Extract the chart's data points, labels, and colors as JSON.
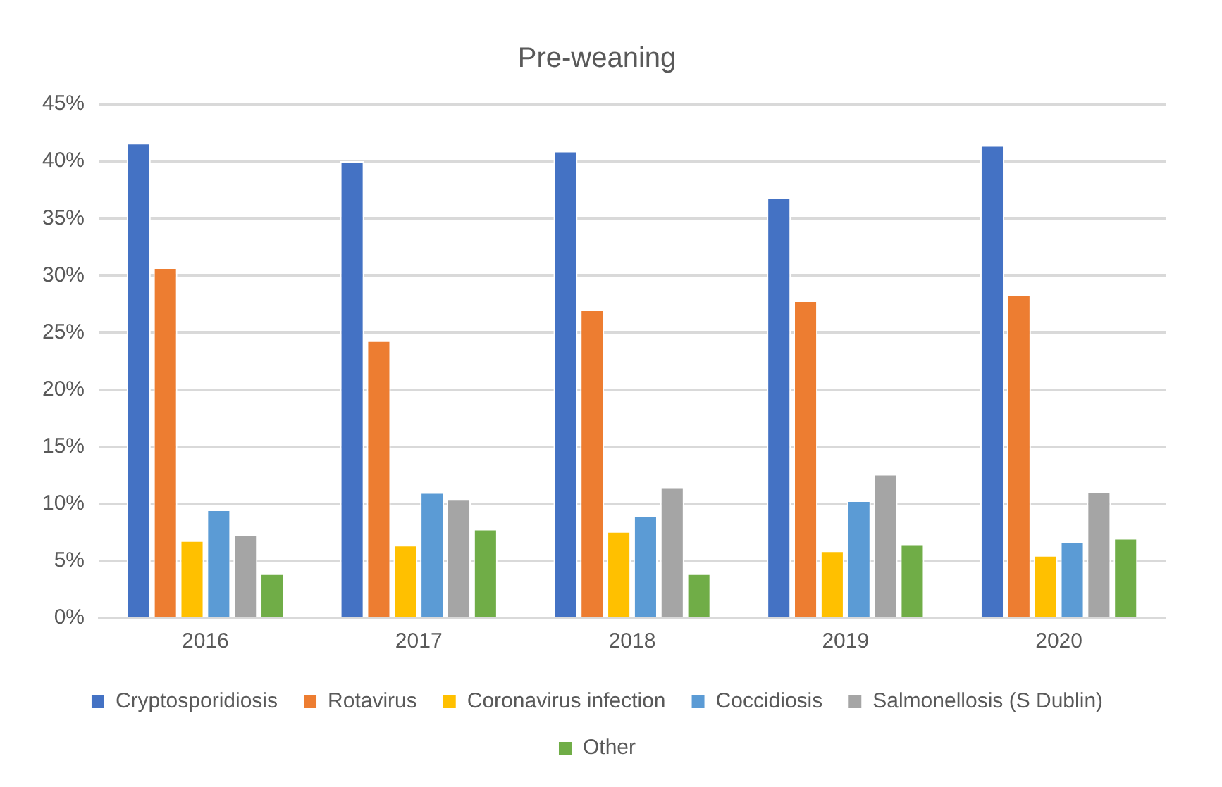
{
  "chart_data": {
    "type": "bar",
    "title": "Pre-weaning",
    "categories": [
      "2016",
      "2017",
      "2018",
      "2019",
      "2020"
    ],
    "series": [
      {
        "name": "Cryptosporidiosis",
        "color": "#4472c4",
        "values": [
          41.6,
          40.0,
          40.9,
          36.8,
          41.4
        ]
      },
      {
        "name": "Rotavirus",
        "color": "#ed7d31",
        "values": [
          30.7,
          24.3,
          27.0,
          27.8,
          28.3
        ]
      },
      {
        "name": "Coronavirus infection",
        "color": "#ffc000",
        "values": [
          6.8,
          6.4,
          7.6,
          5.9,
          5.5
        ]
      },
      {
        "name": "Coccidiosis",
        "color": "#5b9bd5",
        "values": [
          9.5,
          11.0,
          9.0,
          10.3,
          6.7
        ]
      },
      {
        "name": "Salmonellosis (S Dublin)",
        "color": "#a5a5a5",
        "values": [
          7.3,
          10.4,
          11.5,
          12.6,
          11.1
        ]
      },
      {
        "name": "Other",
        "color": "#70ad47",
        "values": [
          3.9,
          7.8,
          3.9,
          6.5,
          7.0
        ]
      }
    ],
    "ylim": [
      0,
      45
    ],
    "yticks": [
      {
        "value": 0,
        "label": "0%"
      },
      {
        "value": 5,
        "label": "5%"
      },
      {
        "value": 10,
        "label": "10%"
      },
      {
        "value": 15,
        "label": "15%"
      },
      {
        "value": 20,
        "label": "20%"
      },
      {
        "value": 25,
        "label": "25%"
      },
      {
        "value": 30,
        "label": "30%"
      },
      {
        "value": 35,
        "label": "35%"
      },
      {
        "value": 40,
        "label": "40%"
      },
      {
        "value": 45,
        "label": "45%"
      }
    ],
    "grid": "y",
    "legend": "bottom"
  }
}
